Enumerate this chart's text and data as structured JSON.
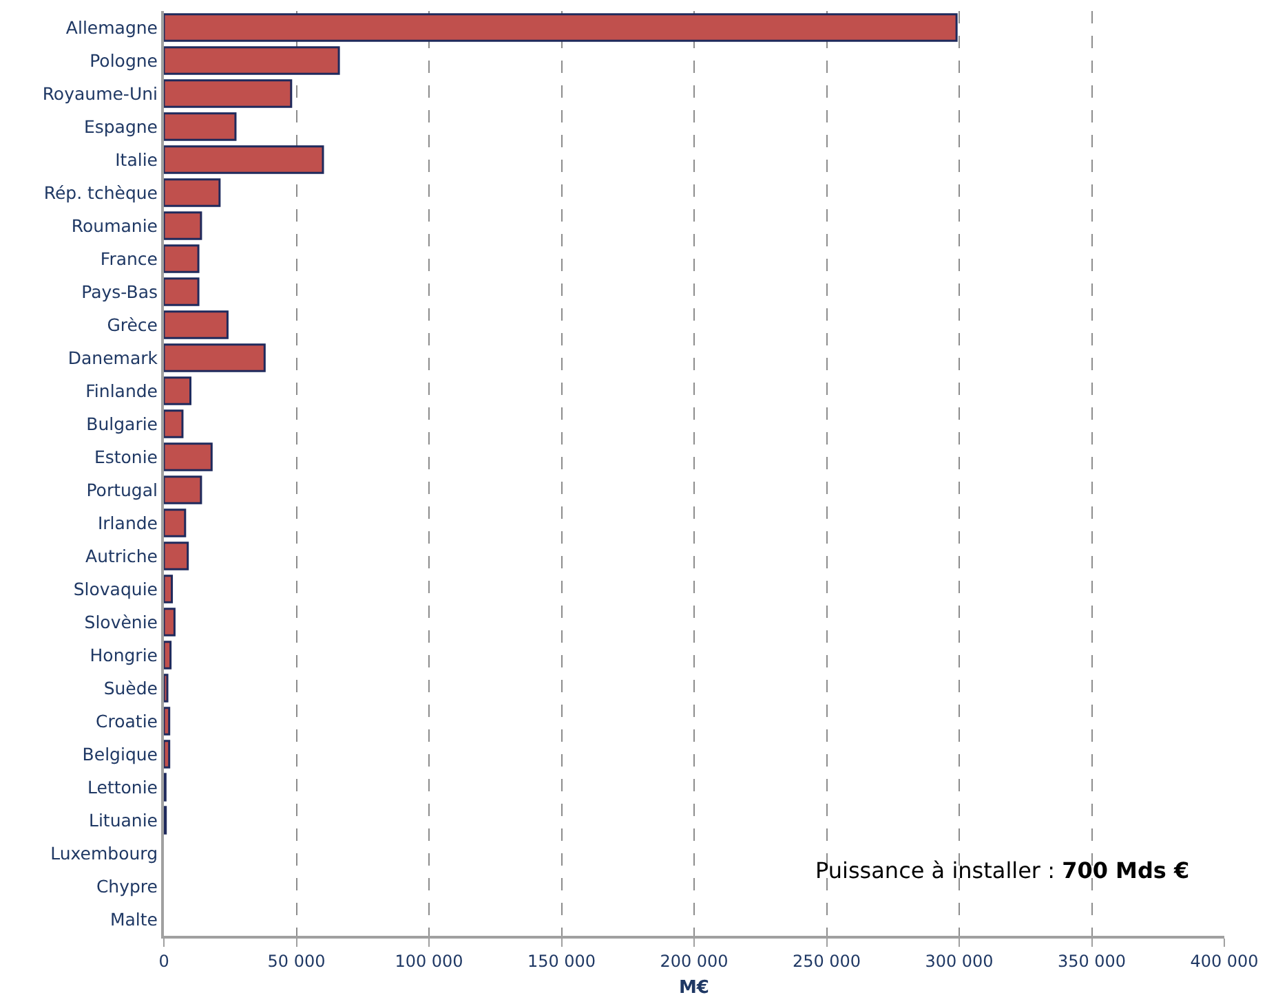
{
  "chart_data": {
    "type": "bar",
    "orientation": "horizontal",
    "xlabel": "M€",
    "categories": [
      "Allemagne",
      "Pologne",
      "Royaume-Uni",
      "Espagne",
      "Italie",
      "Rép. tchèque",
      "Roumanie",
      "France",
      "Pays-Bas",
      "Grèce",
      "Danemark",
      "Finlande",
      "Bulgarie",
      "Estonie",
      "Portugal",
      "Irlande",
      "Autriche",
      "Slovaquie",
      "Slovènie",
      "Hongrie",
      "Suède",
      "Croatie",
      "Belgique",
      "Lettonie",
      "Lituanie",
      "Luxembourg",
      "Chypre",
      "Malte"
    ],
    "values": [
      299000,
      66000,
      48000,
      27000,
      60000,
      21000,
      14000,
      13000,
      13000,
      24000,
      38000,
      10000,
      7000,
      18000,
      14000,
      8000,
      9000,
      3000,
      4000,
      2500,
      1300,
      2000,
      2000,
      600,
      700,
      0,
      0,
      0
    ],
    "color": "#c0504d",
    "xlim": [
      0,
      400000
    ],
    "xticks": [
      {
        "value": 0,
        "label": "0"
      },
      {
        "value": 50000,
        "label": "50 000"
      },
      {
        "value": 100000,
        "label": "100 000"
      },
      {
        "value": 150000,
        "label": "150 000"
      },
      {
        "value": 200000,
        "label": "200 000"
      },
      {
        "value": 250000,
        "label": "250 000"
      },
      {
        "value": 300000,
        "label": "300 000"
      },
      {
        "value": 350000,
        "label": "350 000"
      },
      {
        "value": 400000,
        "label": "400 000"
      }
    ],
    "grid": "x",
    "annotations": [
      "Puissance à installer : 700 Mds €"
    ]
  }
}
